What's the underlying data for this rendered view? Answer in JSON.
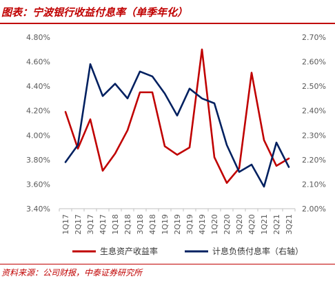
{
  "header": {
    "title": "图表：宁波银行收益付息率（单季年化）"
  },
  "footer": {
    "source": "资料来源：公司财报，中泰证券研究所"
  },
  "chart_data": {
    "type": "line",
    "title": "图表：宁波银行收益付息率（单季年化）",
    "categories": [
      "1Q17",
      "2Q17",
      "3Q17",
      "4Q17",
      "1Q18",
      "2Q18",
      "3Q18",
      "4Q18",
      "1Q19",
      "2Q19",
      "3Q19",
      "4Q19",
      "1Q20",
      "2Q20",
      "3Q20",
      "4Q20",
      "1Q21",
      "2Q21",
      "3Q21"
    ],
    "y_left": {
      "min": 3.4,
      "max": 4.8,
      "step": 0.2,
      "tick_labels": [
        "3.40%",
        "3.60%",
        "3.80%",
        "4.00%",
        "4.20%",
        "4.40%",
        "4.60%",
        "4.80%"
      ]
    },
    "y_right": {
      "min": 2.0,
      "max": 2.7,
      "step": 0.1,
      "tick_labels": [
        "2.00%",
        "2.10%",
        "2.20%",
        "2.30%",
        "2.40%",
        "2.50%",
        "2.60%",
        "2.70%"
      ]
    },
    "series": [
      {
        "name": "生息资产收益率",
        "axis": "left",
        "color": "#c00000",
        "values": [
          4.19,
          3.89,
          4.13,
          3.71,
          3.85,
          4.04,
          4.35,
          4.35,
          3.91,
          3.84,
          3.9,
          4.7,
          3.82,
          3.61,
          3.73,
          4.51,
          3.96,
          3.75,
          3.81
        ]
      },
      {
        "name": "计息负债付息率（右轴）",
        "axis": "right",
        "color": "#002060",
        "values": [
          2.19,
          2.26,
          2.59,
          2.46,
          2.51,
          2.45,
          2.56,
          2.54,
          2.47,
          2.38,
          2.49,
          2.45,
          2.43,
          2.26,
          2.15,
          2.18,
          2.09,
          2.27,
          2.17
        ]
      }
    ],
    "grid": false,
    "legend_position": "bottom"
  }
}
